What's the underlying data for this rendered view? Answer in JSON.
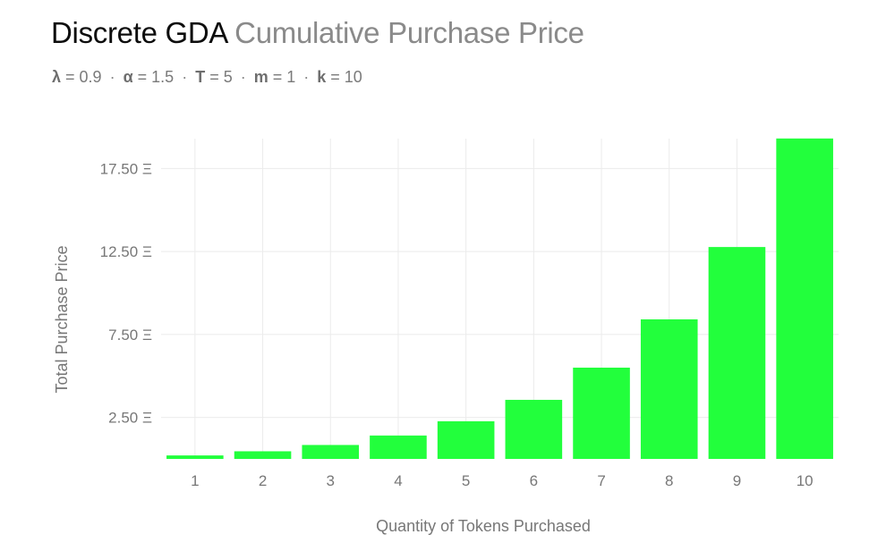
{
  "title": {
    "main": "Discrete GDA",
    "sub": "Cumulative Purchase Price"
  },
  "params": [
    {
      "symbol": "λ",
      "text": " = 0.9"
    },
    {
      "symbol": "α",
      "text": " = 1.5"
    },
    {
      "symbol": "T",
      "text": " = 5"
    },
    {
      "symbol": "m",
      "text": " = 1"
    },
    {
      "symbol": "k",
      "text": " = 10"
    }
  ],
  "param_separator": "·",
  "chart_data": {
    "type": "bar",
    "categories": [
      "1",
      "2",
      "3",
      "4",
      "5",
      "6",
      "7",
      "8",
      "9",
      "10"
    ],
    "values": [
      0.21,
      0.46,
      0.84,
      1.41,
      2.27,
      3.56,
      5.5,
      8.41,
      12.77,
      19.31
    ],
    "xlabel": "Quantity of Tokens Purchased",
    "ylabel": "Total Purchase Price",
    "yticks": [
      2.5,
      7.5,
      12.5,
      17.5
    ],
    "ytick_labels": [
      "2.50 Ξ",
      "7.50 Ξ",
      "12.50 Ξ",
      "17.50 Ξ"
    ],
    "ylim": [
      0,
      19.3
    ],
    "grid": true,
    "bar_color": "#22ff3c",
    "grid_color": "#ebebeb"
  }
}
